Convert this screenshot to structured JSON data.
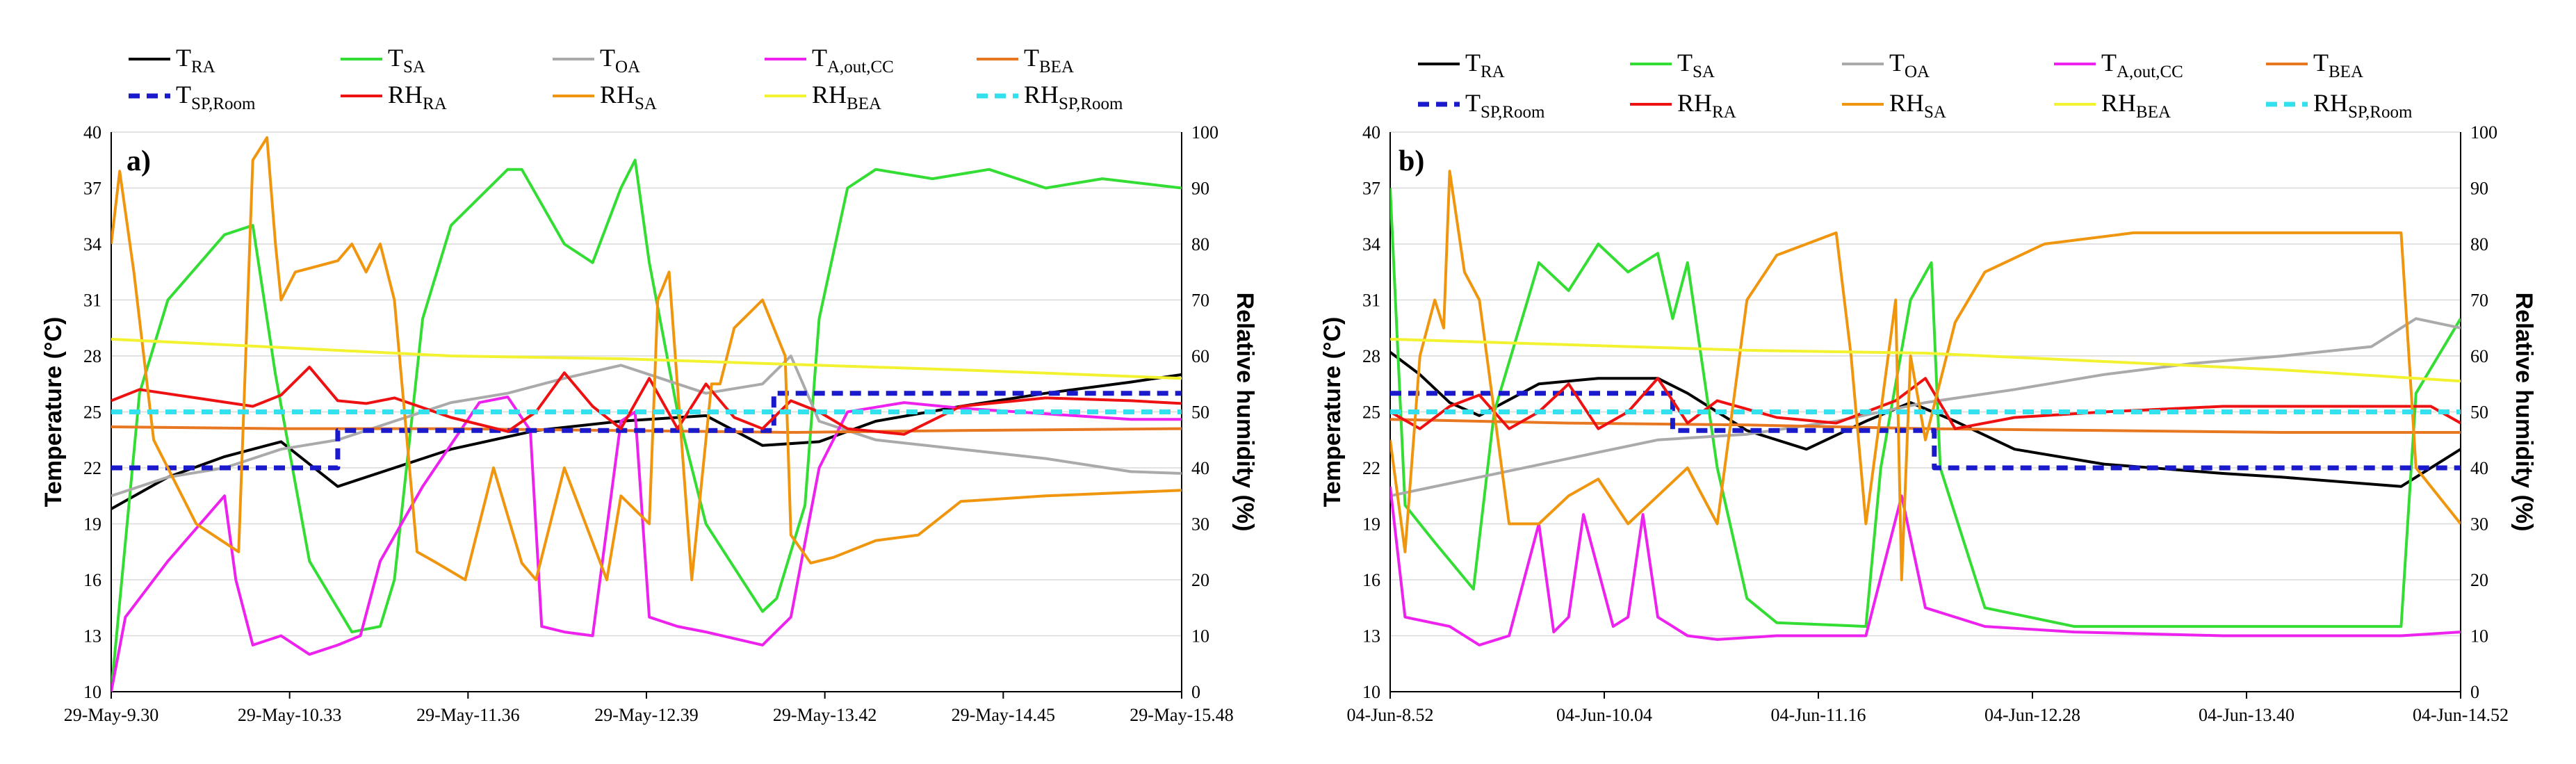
{
  "chart_data": [
    {
      "type": "line",
      "panel_label": "a)",
      "ylabel": "Temperature (°C)",
      "y2label": "Relative humidity (%)",
      "ylim": [
        10,
        40
      ],
      "y2lim": [
        0,
        100
      ],
      "yticks": [
        "10",
        "13",
        "16",
        "19",
        "22",
        "25",
        "28",
        "31",
        "34",
        "37",
        "40"
      ],
      "y2ticks": [
        "0",
        "10",
        "20",
        "30",
        "40",
        "50",
        "60",
        "70",
        "80",
        "90",
        "100"
      ],
      "xlim": [
        0,
        378
      ],
      "xtick_labels": [
        "29-May-9.30",
        "29-May-10.33",
        "29-May-11.36",
        "29-May-12.39",
        "29-May-13.42",
        "29-May-14.45",
        "29-May-15.48"
      ],
      "xtick_positions": [
        0,
        63,
        126,
        189,
        252,
        315,
        378
      ],
      "grid": true,
      "series": [
        {
          "name": "T_RA",
          "base": "T",
          "sub": "RA",
          "axis": "left",
          "color": "#000000",
          "dash": false,
          "x": [
            0,
            20,
            40,
            60,
            80,
            100,
            120,
            150,
            180,
            210,
            230,
            250,
            270,
            300,
            330,
            360,
            378
          ],
          "values": [
            19.8,
            21.5,
            22.6,
            23.4,
            21,
            22,
            23,
            24,
            24.5,
            24.8,
            23.2,
            23.4,
            24.5,
            25.3,
            26,
            26.6,
            27
          ]
        },
        {
          "name": "T_SA",
          "base": "T",
          "sub": "SA",
          "axis": "left",
          "color": "#33dd33",
          "dash": false,
          "x": [
            0,
            10,
            20,
            40,
            50,
            58,
            70,
            85,
            95,
            100,
            110,
            120,
            140,
            145,
            160,
            170,
            180,
            185,
            190,
            200,
            210,
            230,
            235,
            245,
            250,
            260,
            270,
            290,
            310,
            330,
            350,
            378
          ],
          "values": [
            10,
            26,
            31,
            34.5,
            35,
            27,
            17,
            13.2,
            13.5,
            16,
            30,
            35,
            38,
            38,
            34,
            33,
            37,
            38.5,
            33,
            25,
            19,
            14.3,
            15,
            20,
            30,
            37,
            38,
            37.5,
            38,
            37,
            37.5,
            37
          ]
        },
        {
          "name": "T_OA",
          "base": "T",
          "sub": "OA",
          "axis": "left",
          "color": "#aaaaaa",
          "dash": false,
          "x": [
            0,
            20,
            40,
            60,
            80,
            100,
            120,
            140,
            160,
            180,
            190,
            200,
            210,
            230,
            240,
            250,
            270,
            300,
            330,
            360,
            378
          ],
          "values": [
            20.5,
            21.5,
            22,
            23,
            23.5,
            24.5,
            25.5,
            26,
            26.8,
            27.5,
            27,
            26.5,
            26,
            26.5,
            28,
            24.5,
            23.5,
            23,
            22.5,
            21.8,
            21.7
          ]
        },
        {
          "name": "T_A,out,CC",
          "base": "T",
          "sub": "A,out,CC",
          "axis": "left",
          "color": "#ee22ee",
          "dash": false,
          "x": [
            0,
            5,
            20,
            40,
            44,
            50,
            60,
            70,
            80,
            88,
            95,
            110,
            130,
            140,
            148,
            152,
            160,
            170,
            180,
            185,
            190,
            200,
            210,
            230,
            240,
            250,
            260,
            280,
            300,
            320,
            340,
            360,
            378
          ],
          "values": [
            10,
            14,
            17,
            20.5,
            16,
            12.5,
            13,
            12,
            12.5,
            13,
            17,
            21,
            25.5,
            25.8,
            24,
            13.5,
            13.2,
            13,
            24.5,
            25,
            14,
            13.5,
            13.2,
            12.5,
            14,
            22,
            25,
            25.5,
            25.2,
            25,
            24.8,
            24.6,
            24.6
          ]
        },
        {
          "name": "T_BEA",
          "base": "T",
          "sub": "BEA",
          "axis": "left",
          "color": "#e87722",
          "dash": false,
          "x": [
            0,
            60,
            120,
            180,
            240,
            300,
            378
          ],
          "values": [
            24.2,
            24.1,
            24.1,
            24,
            23.9,
            24,
            24.1
          ]
        },
        {
          "name": "T_SP,Room",
          "base": "T",
          "sub": "SP,Room",
          "axis": "left",
          "color": "#1a1acc",
          "dash": true,
          "x": [
            0,
            80,
            80,
            234,
            234,
            378
          ],
          "values": [
            22,
            22,
            24,
            24,
            26,
            26
          ]
        },
        {
          "name": "RH_RA",
          "base": "RH",
          "sub": "RA",
          "axis": "right",
          "color": "#ee1111",
          "dash": false,
          "x": [
            0,
            10,
            30,
            50,
            60,
            70,
            80,
            90,
            100,
            120,
            140,
            150,
            160,
            170,
            180,
            190,
            200,
            210,
            220,
            230,
            240,
            250,
            260,
            280,
            300,
            330,
            360,
            378
          ],
          "values": [
            52,
            54,
            52.5,
            51,
            53,
            58,
            52,
            51.5,
            52.5,
            49,
            46.5,
            50,
            57,
            51,
            47,
            56,
            47,
            55,
            49,
            47,
            52,
            50,
            47,
            46,
            51,
            52.5,
            52,
            51.5
          ]
        },
        {
          "name": "RH_SA",
          "base": "RH",
          "sub": "SA",
          "axis": "right",
          "color": "#f0960e",
          "dash": false,
          "x": [
            0,
            3,
            8,
            15,
            30,
            45,
            50,
            55,
            58,
            60,
            65,
            80,
            85,
            90,
            95,
            100,
            108,
            115,
            125,
            130,
            135,
            145,
            150,
            160,
            175,
            180,
            190,
            193,
            197,
            205,
            212,
            215,
            220,
            230,
            238,
            240,
            247,
            255,
            270,
            285,
            300,
            330,
            378
          ],
          "values": [
            80,
            93,
            75,
            45,
            30,
            25,
            95,
            99,
            80,
            70,
            75,
            77,
            80,
            75,
            80,
            70,
            25,
            23,
            20,
            30,
            40,
            23,
            20,
            40,
            20,
            35,
            30,
            70,
            75,
            20,
            55,
            55,
            65,
            70,
            60,
            28,
            23,
            24,
            27,
            28,
            34,
            35,
            36
          ]
        },
        {
          "name": "RH_BEA",
          "base": "RH",
          "sub": "BEA",
          "axis": "right",
          "color": "#f2f230",
          "dash": false,
          "x": [
            0,
            60,
            120,
            180,
            240,
            300,
            378
          ],
          "values": [
            63,
            61.5,
            60,
            59.5,
            58.5,
            57.5,
            56
          ]
        },
        {
          "name": "RH_SP,Room",
          "base": "RH",
          "sub": "SP,Room",
          "axis": "right",
          "color": "#33e0ee",
          "dash": true,
          "x": [
            0,
            378
          ],
          "values": [
            50,
            50
          ]
        }
      ]
    },
    {
      "type": "line",
      "panel_label": "b)",
      "ylabel": "Temperature (°C)",
      "y2label": "Relative humidity (%)",
      "ylim": [
        10,
        40
      ],
      "y2lim": [
        0,
        100
      ],
      "yticks": [
        "10",
        "13",
        "16",
        "19",
        "22",
        "25",
        "28",
        "31",
        "34",
        "37",
        "40"
      ],
      "y2ticks": [
        "0",
        "10",
        "20",
        "30",
        "40",
        "50",
        "60",
        "70",
        "80",
        "90",
        "100"
      ],
      "xlim": [
        0,
        360
      ],
      "xtick_labels": [
        "04-Jun-8.52",
        "04-Jun-10.04",
        "04-Jun-11.16",
        "04-Jun-12.28",
        "04-Jun-13.40",
        "04-Jun-14.52"
      ],
      "xtick_positions": [
        0,
        72,
        144,
        216,
        288,
        360
      ],
      "grid": true,
      "series": [
        {
          "name": "T_RA",
          "base": "T",
          "sub": "RA",
          "axis": "left",
          "color": "#000000",
          "dash": false,
          "x": [
            0,
            10,
            20,
            30,
            50,
            70,
            90,
            100,
            120,
            140,
            160,
            175,
            190,
            210,
            240,
            280,
            300,
            340,
            350,
            360
          ],
          "values": [
            28.2,
            27,
            25.5,
            24.8,
            26.5,
            26.8,
            26.8,
            26,
            24,
            23,
            24.5,
            25.5,
            24.5,
            23,
            22.2,
            21.7,
            21.5,
            21,
            22,
            23
          ]
        },
        {
          "name": "T_SA",
          "base": "T",
          "sub": "SA",
          "axis": "left",
          "color": "#33dd33",
          "dash": false,
          "x": [
            0,
            5,
            15,
            28,
            35,
            50,
            60,
            70,
            80,
            90,
            95,
            100,
            110,
            120,
            130,
            160,
            165,
            175,
            182,
            185,
            200,
            230,
            280,
            340,
            345,
            360
          ],
          "values": [
            37,
            20,
            18,
            15.5,
            25,
            33,
            31.5,
            34,
            32.5,
            33.5,
            30,
            33,
            22,
            15,
            13.7,
            13.5,
            22,
            31,
            33,
            22,
            14.5,
            13.5,
            13.5,
            13.5,
            26,
            30
          ]
        },
        {
          "name": "T_OA",
          "base": "T",
          "sub": "OA",
          "axis": "left",
          "color": "#aaaaaa",
          "dash": false,
          "x": [
            0,
            30,
            60,
            90,
            120,
            150,
            180,
            210,
            240,
            270,
            300,
            330,
            345,
            360
          ],
          "values": [
            20.5,
            21.5,
            22.5,
            23.5,
            23.8,
            24.5,
            25.5,
            26.2,
            27,
            27.6,
            28,
            28.5,
            30,
            29.5
          ]
        },
        {
          "name": "T_A,out,CC",
          "base": "T",
          "sub": "A,out,CC",
          "axis": "left",
          "color": "#ee22ee",
          "dash": false,
          "x": [
            0,
            5,
            20,
            30,
            40,
            50,
            55,
            60,
            65,
            75,
            80,
            85,
            90,
            95,
            100,
            110,
            130,
            160,
            172,
            180,
            200,
            230,
            280,
            340,
            360
          ],
          "values": [
            21,
            14,
            13.5,
            12.5,
            13,
            19,
            13.2,
            14,
            19.5,
            13.5,
            14,
            19.5,
            14,
            13.5,
            13,
            12.8,
            13,
            13,
            20.5,
            14.5,
            13.5,
            13.2,
            13,
            13,
            13.2
          ]
        },
        {
          "name": "T_BEA",
          "base": "T",
          "sub": "BEA",
          "axis": "left",
          "color": "#e87722",
          "dash": false,
          "x": [
            0,
            60,
            120,
            180,
            240,
            300,
            360
          ],
          "values": [
            24.6,
            24.4,
            24.3,
            24.1,
            24,
            23.9,
            23.9
          ]
        },
        {
          "name": "T_SP,Room",
          "base": "T",
          "sub": "SP,Room",
          "axis": "left",
          "color": "#1a1acc",
          "dash": true,
          "x": [
            0,
            95,
            95,
            183,
            183,
            360
          ],
          "values": [
            26,
            26,
            24,
            24,
            22,
            22
          ]
        },
        {
          "name": "RH_RA",
          "base": "RH",
          "sub": "RA",
          "axis": "right",
          "color": "#ee1111",
          "dash": false,
          "x": [
            0,
            10,
            20,
            30,
            40,
            50,
            60,
            70,
            80,
            90,
            100,
            110,
            130,
            150,
            170,
            180,
            190,
            210,
            240,
            280,
            320,
            350,
            360
          ],
          "values": [
            50,
            47,
            51,
            53,
            47,
            50,
            55,
            47,
            50,
            56,
            48,
            52,
            49,
            48,
            52,
            56,
            47,
            49,
            50,
            51,
            51,
            51,
            48
          ]
        },
        {
          "name": "RH_SA",
          "base": "RH",
          "sub": "SA",
          "axis": "right",
          "color": "#f0960e",
          "dash": false,
          "x": [
            0,
            5,
            10,
            15,
            18,
            20,
            25,
            30,
            35,
            40,
            50,
            60,
            70,
            80,
            90,
            100,
            110,
            120,
            130,
            150,
            155,
            160,
            165,
            170,
            172,
            175,
            180,
            190,
            200,
            220,
            250,
            300,
            340,
            345,
            360
          ],
          "values": [
            45,
            25,
            60,
            70,
            65,
            93,
            75,
            70,
            50,
            30,
            30,
            35,
            38,
            30,
            35,
            40,
            30,
            70,
            78,
            82,
            60,
            30,
            50,
            70,
            20,
            60,
            45,
            66,
            75,
            80,
            82,
            82,
            82,
            40,
            30
          ]
        },
        {
          "name": "RH_BEA",
          "base": "RH",
          "sub": "BEA",
          "axis": "right",
          "color": "#f2f230",
          "dash": false,
          "x": [
            0,
            60,
            120,
            180,
            240,
            300,
            360
          ],
          "values": [
            63,
            62,
            61,
            60.5,
            59,
            57.5,
            55.5
          ]
        },
        {
          "name": "RH_SP,Room",
          "base": "RH",
          "sub": "SP,Room",
          "axis": "right",
          "color": "#33e0ee",
          "dash": true,
          "x": [
            0,
            360
          ],
          "values": [
            50,
            50
          ]
        }
      ]
    }
  ]
}
